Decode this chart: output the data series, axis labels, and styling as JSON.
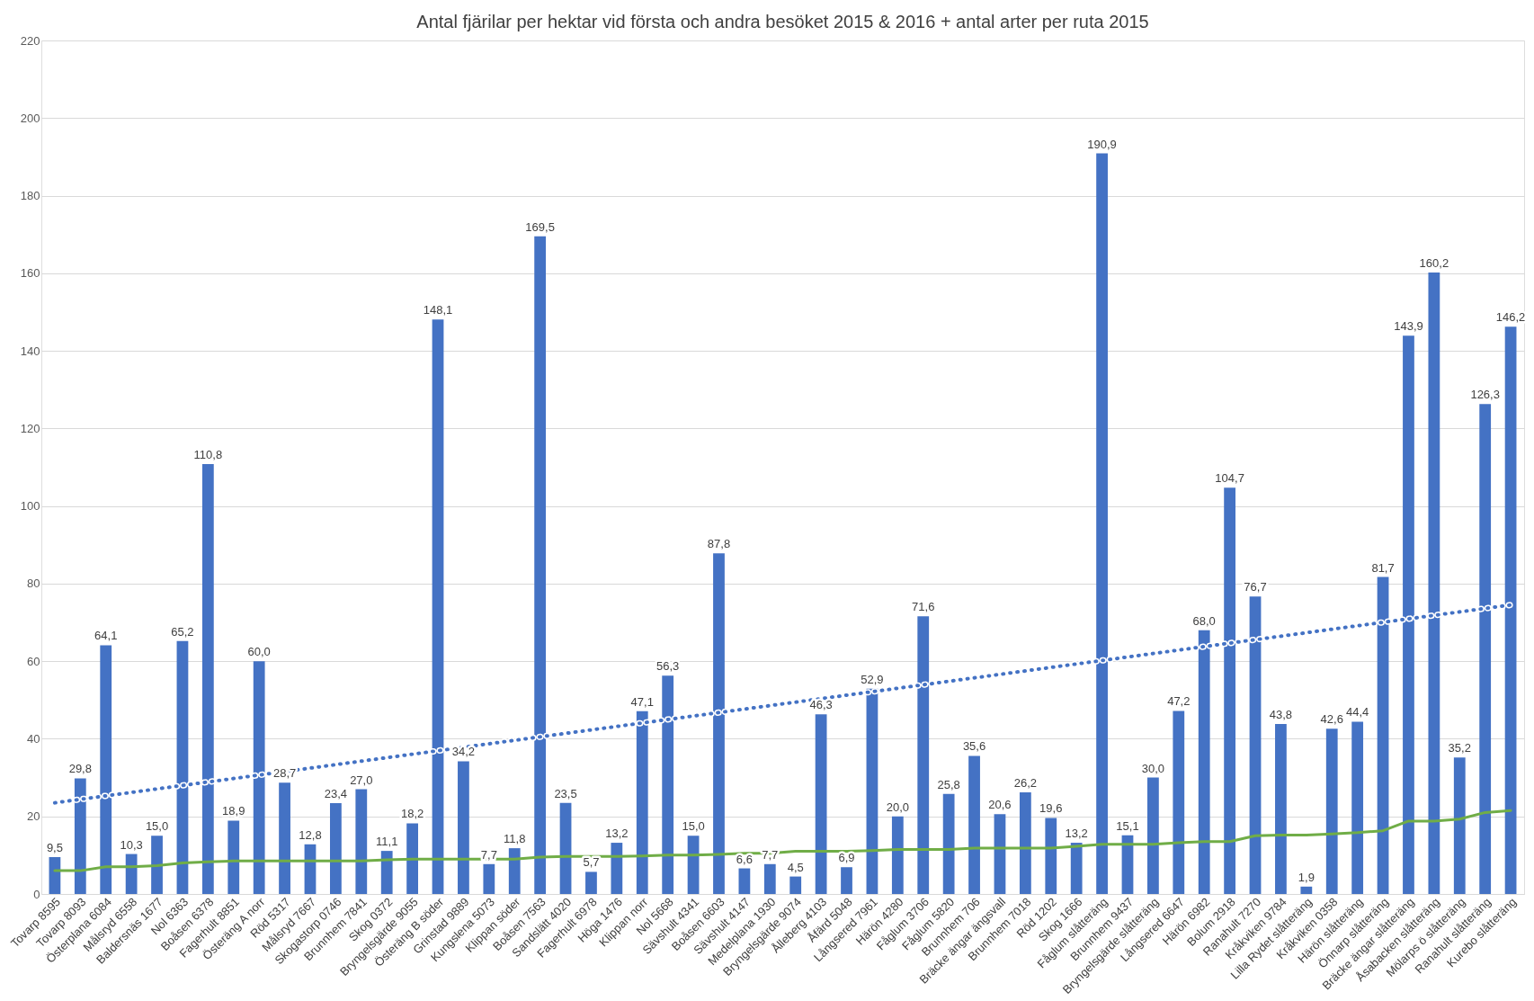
{
  "chart_data": {
    "type": "bar",
    "title": "Antal fjärilar per hektar vid första och andra besöket 2015 & 2016 + antal arter per ruta 2015",
    "categories": [
      "Tovarp 8595",
      "Tovarp 8093",
      "Österplana 6084",
      "Målsryd 6558",
      "Baldersnäs 1677",
      "Nol 6363",
      "Boåsen 6378",
      "Fagerhult 8851",
      "Österäng A norr",
      "Röd 5317",
      "Målsryd 7667",
      "Skogastorp 0746",
      "Brunnhem 7841",
      "Skog 0372",
      "Bryngelsgärde 9055",
      "Österäng B söder",
      "Grinstad 9889",
      "Kungslena 5073",
      "Klippan söder",
      "Boåsen 7563",
      "Sandslätt 4020",
      "Fagerhult 6978",
      "Höga 1476",
      "Klippan norr",
      "Nol 5668",
      "Sävshult 4341",
      "Boåsen 6603",
      "Sävshult 4147",
      "Medelplana 1930",
      "Bryngelsgärde 9074",
      "Ålleberg 4103",
      "Åfärd 5048",
      "Långsered 7961",
      "Härön 4280",
      "Fåglum 3706",
      "Fåglum 5820",
      "Brunnhem 706",
      "Bräcke ängar ängsvall",
      "Brunnhem 7018",
      "Röd 1202",
      "Skog 1666",
      "Fåglum slåtteräng",
      "Brunnhem 9437",
      "Bryngelsgärde slåtteräng",
      "Långsered 6647",
      "Härön 6982",
      "Bolum 2918",
      "Ranahult 7270",
      "Kråkviken 9784",
      "Lilla Rydet slåtteräng",
      "Kråkviken 0358",
      "Härön slåtteräng",
      "Önnarp slåtteräng",
      "Bräcke ängar slåtteräng",
      "Åsabacken slåtteräng",
      "Mölarps ö slåtteräng",
      "Ranahult slåtteräng",
      "Kurebo slåtteräng"
    ],
    "series": [
      {
        "color": "#4472c4",
        "values": [
          9.5,
          29.8,
          64.1,
          10.3,
          15.0,
          65.2,
          110.8,
          18.9,
          60.0,
          28.7,
          12.8,
          23.4,
          27.0,
          11.1,
          18.2,
          148.1,
          34.2,
          7.7,
          11.8,
          169.5,
          23.5,
          5.7,
          13.2,
          47.1,
          56.3,
          15.0,
          87.8,
          6.6,
          7.7,
          4.5,
          46.3,
          6.9,
          52.9,
          20.0,
          71.6,
          25.8,
          35.6,
          20.6,
          26.2,
          19.6,
          13.2,
          190.9,
          15.1,
          30.0,
          47.2,
          68.0,
          104.7,
          76.7,
          43.8,
          1.9,
          42.6,
          44.4,
          81.7,
          143.9,
          160.2,
          35.2,
          126.3,
          146.2
        ],
        "value_labels": [
          "9,5",
          "29,8",
          "64,1",
          "10,3",
          "15,0",
          "65,2",
          "110,8",
          "18,9",
          "60,0",
          "28,7",
          "12,8",
          "23,4",
          "27,0",
          "11,1",
          "18,2",
          "148,1",
          "34,2",
          "7,7",
          "11,8",
          "169,5",
          "23,5",
          "5,7",
          "13,2",
          "47,1",
          "56,3",
          "15,0",
          "87,8",
          "6,6",
          "7,7",
          "4,5",
          "46,3",
          "6,9",
          "52,9",
          "20,0",
          "71,6",
          "25,8",
          "35,6",
          "20,6",
          "26,2",
          "19,6",
          "13,2",
          "190,9",
          "15,1",
          "30,0",
          "47,2",
          "68,0",
          "104,7",
          "76,7",
          "43,8",
          "1,9",
          "42,6",
          "44,4",
          "81,7",
          "143,9",
          "160,2",
          "35,2",
          "126,3",
          "146,2"
        ]
      },
      {
        "type": "line",
        "color": "#70ad47",
        "line_style": "solid",
        "values": [
          6,
          6,
          7,
          7,
          7.3,
          8,
          8.3,
          8.5,
          8.5,
          8.5,
          8.5,
          8.5,
          8.5,
          8.8,
          9,
          9,
          9,
          9,
          9,
          9.5,
          9.7,
          9.7,
          9.7,
          9.8,
          10,
          10,
          10.2,
          10.5,
          10.5,
          11,
          11,
          11,
          11.2,
          11.5,
          11.5,
          11.5,
          11.8,
          11.8,
          11.8,
          11.8,
          12.3,
          12.8,
          12.8,
          12.8,
          13.2,
          13.5,
          13.5,
          15,
          15.2,
          15.2,
          15.5,
          15.8,
          16.3,
          18.8,
          18.8,
          19.3,
          21,
          21.5
        ]
      },
      {
        "type": "line",
        "color": "#4472c4",
        "line_style": "dotted",
        "x": [
          "Tovarp 8595",
          "Kurebo slåtteräng"
        ],
        "values": [
          23.5,
          74.5
        ]
      }
    ],
    "ylim": [
      0,
      220
    ],
    "yticks": [
      0,
      20,
      40,
      60,
      80,
      100,
      120,
      140,
      160,
      180,
      200,
      220
    ],
    "grid": "y"
  }
}
